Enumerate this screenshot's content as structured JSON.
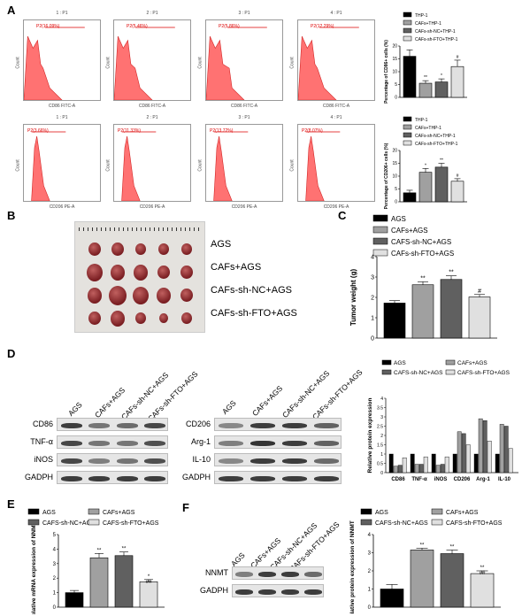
{
  "panels": {
    "A": "A",
    "B": "B",
    "C": "C",
    "D": "D",
    "E": "E",
    "F": "F"
  },
  "panel_A": {
    "row1": [
      {
        "title": "1 : P1",
        "gate": "P2(16.09%)",
        "xlabel": "CD86 FITC-A",
        "ylabel": "Count"
      },
      {
        "title": "2 : P1",
        "gate": "P2(5.46%)",
        "xlabel": "CD86 FITC-A",
        "ylabel": "Count"
      },
      {
        "title": "3 : P1",
        "gate": "P2(5.86%)",
        "xlabel": "CD86 FITC-A",
        "ylabel": "Count"
      },
      {
        "title": "4 : P1",
        "gate": "P2(12.29%)",
        "xlabel": "CD86 FITC-A",
        "ylabel": "Count"
      }
    ],
    "row2": [
      {
        "title": "1 : P1",
        "gate": "P2(3.66%)",
        "xlabel": "CD206 PE-A",
        "ylabel": "Count"
      },
      {
        "title": "2 : P1",
        "gate": "P2(11.33%)",
        "xlabel": "CD206 PE-A",
        "ylabel": "Count"
      },
      {
        "title": "3 : P1",
        "gate": "P2(13.72%)",
        "xlabel": "CD206 PE-A",
        "ylabel": "Count"
      },
      {
        "title": "4 : P1",
        "gate": "P2(8.07%)",
        "xlabel": "CD206 PE-A",
        "ylabel": "Count"
      }
    ],
    "legend": [
      "THP-1",
      "CAFs+THP-1",
      "CAFs-sh-NC+THP-1",
      "CAFs-sh-FTO+THP-1"
    ]
  },
  "panel_B": {
    "labels": [
      "AGS",
      "CAFs+AGS",
      "CAFs-sh-NC+AGS",
      "CAFs-sh-FTO+AGS"
    ]
  },
  "panel_D": {
    "lanes": [
      "AGS",
      "CAFs+AGS",
      "CAFs-sh-NC+AGS",
      "CAFs-sh-FTO+AGS"
    ],
    "left_blots": [
      "CD86",
      "TNF-α",
      "iNOS",
      "GADPH"
    ],
    "right_blots": [
      "CD206",
      "Arg-1",
      "IL-10",
      "GADPH"
    ]
  },
  "panel_F": {
    "lanes": [
      "AGS",
      "CAFs+AGS",
      "CAFs-sh-NC+AGS",
      "CAFs-sh-FTO+AGS"
    ],
    "blots": [
      "NNMT",
      "GADPH"
    ]
  },
  "colors": {
    "s1": "#000000",
    "s2": "#a0a0a0",
    "s3": "#606060",
    "s4": "#e0e0e0",
    "hist": "#ff5a5a"
  },
  "chart_data": [
    {
      "id": "A1",
      "type": "bar",
      "categories": [
        "THP-1",
        "CAFs+THP-1",
        "CAFs-sh-NC+THP-1",
        "CAFs-sh-FTO+THP-1"
      ],
      "values": [
        16,
        5.5,
        6,
        12
      ],
      "errors": [
        2.5,
        1,
        1.2,
        2.5
      ],
      "marks": [
        "",
        "**",
        "*",
        "#"
      ],
      "ylabel": "Percentage of CD86+ cells (%)",
      "ylim": [
        0,
        20
      ],
      "ticks": [
        0,
        5,
        10,
        15,
        20
      ]
    },
    {
      "id": "A2",
      "type": "bar",
      "categories": [
        "THP-1",
        "CAFs+THP-1",
        "CAFs-sh-NC+THP-1",
        "CAFs-sh-FTO+THP-1"
      ],
      "values": [
        3.5,
        11.5,
        13.5,
        8
      ],
      "errors": [
        1,
        1.5,
        1.5,
        1
      ],
      "marks": [
        "",
        "*",
        "**",
        "#"
      ],
      "ylabel": "Percentage of CD206+ cells (%)",
      "ylim": [
        0,
        20
      ],
      "ticks": [
        0,
        5,
        10,
        15,
        20
      ]
    },
    {
      "id": "C",
      "type": "bar",
      "categories": [
        "AGS",
        "CAFs+AGS",
        "CAFS-sh-NC+AGS",
        "CAFs-sh-FTO+AGS"
      ],
      "values": [
        1.72,
        2.62,
        2.88,
        2.02
      ],
      "errors": [
        0.12,
        0.15,
        0.18,
        0.12
      ],
      "marks": [
        "",
        "**",
        "**",
        "#"
      ],
      "ylabel": "Tumor weight (g)",
      "ylim": [
        0,
        4
      ],
      "ticks": [
        0,
        1,
        2,
        3,
        4
      ]
    },
    {
      "id": "D",
      "type": "bar",
      "categories": [
        "CD86",
        "TNF-α",
        "iNOS",
        "CD206",
        "Arg-1",
        "IL-10"
      ],
      "series": [
        {
          "name": "AGS",
          "values": [
            1.0,
            1.0,
            1.0,
            1.0,
            1.0,
            1.0
          ]
        },
        {
          "name": "CAFs+AGS",
          "values": [
            0.35,
            0.45,
            0.4,
            2.2,
            2.9,
            2.6
          ]
        },
        {
          "name": "CAFS-sh-NC+AGS",
          "values": [
            0.4,
            0.45,
            0.45,
            2.1,
            2.8,
            2.5
          ]
        },
        {
          "name": "CAFS-sh-FTO+AGS",
          "values": [
            0.8,
            0.85,
            0.85,
            1.5,
            1.7,
            1.3
          ]
        }
      ],
      "ylabel": "Relative protein expression",
      "ylim": [
        0,
        4
      ],
      "ticks": [
        0,
        0.5,
        1,
        1.5,
        2,
        2.5,
        3,
        3.5,
        4
      ]
    },
    {
      "id": "E",
      "type": "bar",
      "categories": [
        "AGS",
        "CAFs+AGS",
        "CAFS-sh-NC+AGS",
        "CAFS-sh-FTO+AGS"
      ],
      "values": [
        1.0,
        3.4,
        3.55,
        1.75
      ],
      "errors": [
        0.15,
        0.3,
        0.25,
        0.15
      ],
      "marks": [
        "",
        "**",
        "**",
        "*\n##"
      ],
      "ylabel": "Relative mRNA expression of NNMT",
      "ylim": [
        0,
        5
      ],
      "ticks": [
        0,
        1,
        2,
        3,
        4,
        5
      ]
    },
    {
      "id": "F",
      "type": "bar",
      "categories": [
        "AGS",
        "CAFs+AGS",
        "CAFS-sh-NC+AGS",
        "CAFS-sh-FTO+AGS"
      ],
      "values": [
        1.0,
        3.15,
        2.95,
        1.85
      ],
      "errors": [
        0.25,
        0.1,
        0.2,
        0.15
      ],
      "marks": [
        "",
        "**",
        "**",
        "**\n##"
      ],
      "ylabel": "Relative protein expression of NNMT",
      "ylim": [
        0,
        4
      ],
      "ticks": [
        0,
        1,
        2,
        3,
        4
      ]
    }
  ]
}
